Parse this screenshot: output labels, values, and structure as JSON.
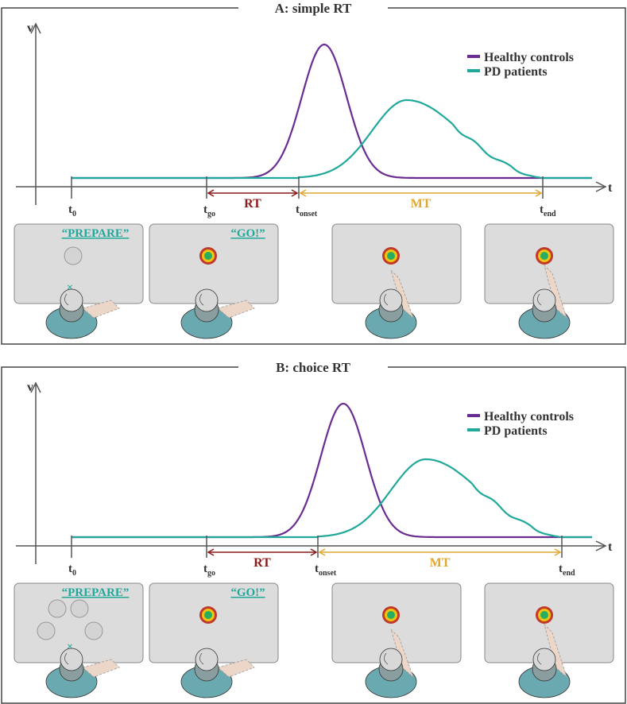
{
  "panels": [
    {
      "title": "A: simple RT",
      "y_label": "v",
      "x_label": "t",
      "legend": [
        "Healthy controls",
        "PD patients"
      ],
      "time_points": [
        {
          "main": "t",
          "sub": "0"
        },
        {
          "main": "t",
          "sub": "go"
        },
        {
          "main": "t",
          "sub": "onset"
        },
        {
          "main": "t",
          "sub": "end"
        }
      ],
      "intervals": [
        "RT",
        "MT"
      ],
      "screens": [
        "“PREPARE”",
        "“GO!”"
      ]
    },
    {
      "title": "B: choice RT",
      "y_label": "v",
      "x_label": "t",
      "legend": [
        "Healthy controls",
        "PD patients"
      ],
      "time_points": [
        {
          "main": "t",
          "sub": "0"
        },
        {
          "main": "t",
          "sub": "go"
        },
        {
          "main": "t",
          "sub": "onset"
        },
        {
          "main": "t",
          "sub": "end"
        }
      ],
      "intervals": [
        "RT",
        "MT"
      ],
      "screens": [
        "“PREPARE”",
        "“GO!”"
      ]
    }
  ]
}
